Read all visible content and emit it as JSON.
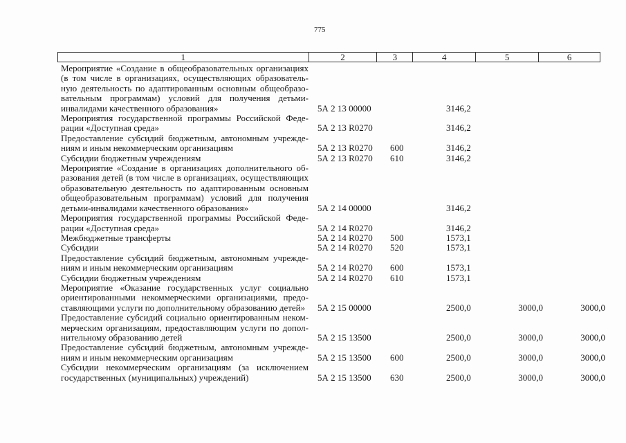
{
  "page_number": "775",
  "header": [
    "1",
    "2",
    "3",
    "4",
    "5",
    "6"
  ],
  "rows": [
    {
      "lines": [
        "Мероприятие «Создание в общеобразовательных организациях",
        "(в том числе в организациях, осуществляющих образователь-",
        "ную деятельность по адаптированным основным общеобразо-",
        "вательным программам) условий для получения детьми-",
        "инвалидами качественного образования»"
      ],
      "code": "5А 2 13 00000",
      "type": "",
      "y1": "3146,2",
      "y2": "",
      "y3": ""
    },
    {
      "lines": [
        "Мероприятия государственной программы Российской Феде-",
        "рации «Доступная среда»"
      ],
      "code": "5А 2 13 R0270",
      "type": "",
      "y1": "3146,2",
      "y2": "",
      "y3": ""
    },
    {
      "lines": [
        "Предоставление субсидий бюджетным, автономным учрежде-",
        "ниям и иным некоммерческим организациям"
      ],
      "code": "5А 2 13 R0270",
      "type": "600",
      "y1": "3146,2",
      "y2": "",
      "y3": ""
    },
    {
      "lines": [
        "Субсидии бюджетным учреждениям"
      ],
      "code": "5А 2 13 R0270",
      "type": "610",
      "y1": "3146,2",
      "y2": "",
      "y3": ""
    },
    {
      "lines": [
        "Мероприятие «Создание в организациях дополнительного об-",
        "разования детей (в том числе в организациях, осуществляющих",
        "образовательную деятельность по адаптированным основным",
        "общеобразовательным программам) условий для получения",
        "детьми-инвалидами качественного образования»"
      ],
      "code": "5А 2 14 00000",
      "type": "",
      "y1": "3146,2",
      "y2": "",
      "y3": ""
    },
    {
      "lines": [
        "Мероприятия государственной программы Российской Феде-",
        "рации «Доступная среда»"
      ],
      "code": "5А 2 14 R0270",
      "type": "",
      "y1": "3146,2",
      "y2": "",
      "y3": ""
    },
    {
      "lines": [
        "Межбюджетные трансферты"
      ],
      "code": "5А 2 14 R0270",
      "type": "500",
      "y1": "1573,1",
      "y2": "",
      "y3": ""
    },
    {
      "lines": [
        "Субсидии"
      ],
      "code": "5А 2 14 R0270",
      "type": "520",
      "y1": "1573,1",
      "y2": "",
      "y3": ""
    },
    {
      "lines": [
        "Предоставление субсидий бюджетным, автономным учрежде-",
        "ниям и иным некоммерческим организациям"
      ],
      "code": "5А 2 14 R0270",
      "type": "600",
      "y1": "1573,1",
      "y2": "",
      "y3": ""
    },
    {
      "lines": [
        "Субсидии бюджетным учреждениям"
      ],
      "code": "5А 2 14 R0270",
      "type": "610",
      "y1": "1573,1",
      "y2": "",
      "y3": ""
    },
    {
      "lines": [
        "Мероприятие «Оказание государственных услуг социально",
        "ориентированными некоммерческими организациями, предо-",
        "ставляющими услуги по дополнительному образованию детей»"
      ],
      "code": "5А 2 15 00000",
      "type": "",
      "y1": "2500,0",
      "y2": "3000,0",
      "y3": "3000,0"
    },
    {
      "lines": [
        "Предоставление субсидий социально ориентированным неком-",
        "мерческим организациям, предоставляющим услуги по допол-",
        "нительному образованию детей"
      ],
      "code": "5А 2 15 13500",
      "type": "",
      "y1": "2500,0",
      "y2": "3000,0",
      "y3": "3000,0"
    },
    {
      "lines": [
        "Предоставление субсидий бюджетным, автономным учрежде-",
        "ниям и иным некоммерческим организациям"
      ],
      "code": "5А 2 15 13500",
      "type": "600",
      "y1": "2500,0",
      "y2": "3000,0",
      "y3": "3000,0"
    },
    {
      "lines": [
        "Субсидии некоммерческим организациям (за исключением",
        "государственных (муниципальных) учреждений)"
      ],
      "code": "5А 2 15 13500",
      "type": "630",
      "y1": "2500,0",
      "y2": "3000,0",
      "y3": "3000,0"
    }
  ]
}
